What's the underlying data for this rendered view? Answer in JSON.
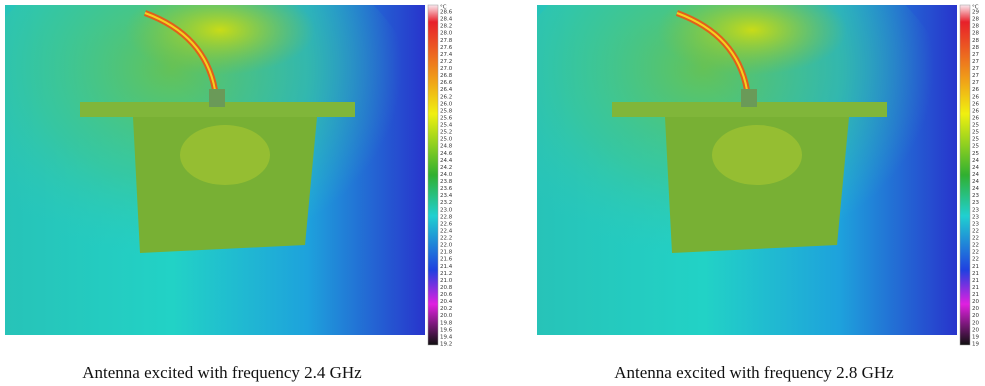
{
  "figures": [
    {
      "caption": "Antenna excited with frequency 2.4 GHz",
      "colorbar": {
        "unit": "°C",
        "labels": [
          "28.6",
          "28.4",
          "28.2",
          "28.0",
          "27.8",
          "27.6",
          "27.4",
          "27.2",
          "27.0",
          "26.8",
          "26.6",
          "26.4",
          "26.2",
          "26.0",
          "25.8",
          "25.6",
          "25.4",
          "25.2",
          "25.0",
          "24.8",
          "24.6",
          "24.4",
          "24.2",
          "24.0",
          "23.8",
          "23.6",
          "23.4",
          "23.2",
          "23.0",
          "22.8",
          "22.6",
          "22.4",
          "22.2",
          "22.0",
          "21.8",
          "21.6",
          "21.4",
          "21.2",
          "21.0",
          "20.8",
          "20.6",
          "20.4",
          "20.2",
          "20.0",
          "19.8",
          "19.6",
          "19.4",
          "19.2"
        ]
      }
    },
    {
      "caption": "Antenna excited with frequency 2.8 GHz",
      "colorbar": {
        "unit": "°C",
        "labels": [
          "29",
          "28",
          "28",
          "28",
          "28",
          "28",
          "27",
          "27",
          "27",
          "27",
          "27",
          "26",
          "26",
          "26",
          "26",
          "26",
          "25",
          "25",
          "25",
          "25",
          "25",
          "24",
          "24",
          "24",
          "24",
          "24",
          "23",
          "23",
          "23",
          "23",
          "23",
          "22",
          "22",
          "22",
          "22",
          "22",
          "21",
          "21",
          "21",
          "21",
          "21",
          "20",
          "20",
          "20",
          "20",
          "20",
          "19",
          "19"
        ]
      }
    }
  ]
}
